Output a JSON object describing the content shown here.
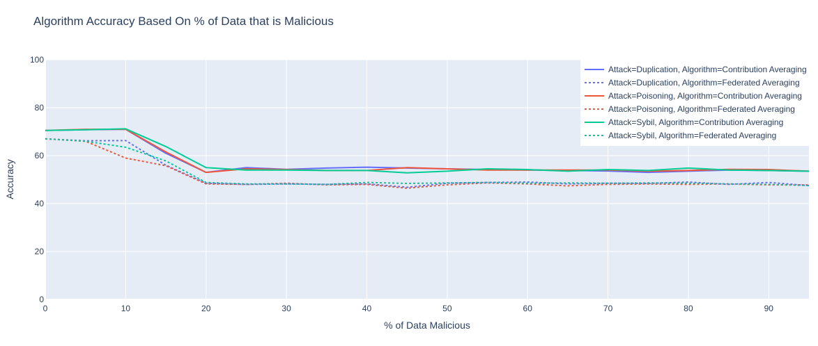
{
  "chart_data": {
    "type": "line",
    "title": "Algorithm Accuracy Based On % of Data that is Malicious",
    "xlabel": "% of Data Malicious",
    "ylabel": "Accuracy",
    "xlim": [
      0,
      95
    ],
    "ylim": [
      0,
      100
    ],
    "xticks": [
      0,
      10,
      20,
      30,
      40,
      50,
      60,
      70,
      80,
      90
    ],
    "yticks": [
      0,
      20,
      40,
      60,
      80,
      100
    ],
    "grid": true,
    "legend_position": "top-right",
    "x": [
      0,
      5,
      10,
      15,
      20,
      25,
      30,
      35,
      40,
      45,
      50,
      55,
      60,
      65,
      70,
      75,
      80,
      85,
      90,
      95
    ],
    "series": [
      {
        "name": "Attack=Duplication, Algorithm=Contribution Averaging",
        "color": "#636efa",
        "dash": "solid",
        "values": [
          70.5,
          70.8,
          71.0,
          61.0,
          53.0,
          55.0,
          54.3,
          54.8,
          55.2,
          54.8,
          54.5,
          54.2,
          54.0,
          53.8,
          53.6,
          53.0,
          53.5,
          54.0,
          53.8,
          53.5
        ]
      },
      {
        "name": "Attack=Duplication, Algorithm=Federated Averaging",
        "color": "#636efa",
        "dash": "dot",
        "values": [
          67.0,
          66.2,
          66.3,
          56.0,
          48.5,
          48.0,
          48.2,
          48.0,
          48.2,
          46.8,
          48.5,
          48.8,
          49.0,
          48.2,
          48.5,
          48.4,
          49.0,
          48.0,
          48.8,
          47.5
        ]
      },
      {
        "name": "Attack=Poisoning, Algorithm=Contribution Averaging",
        "color": "#ef553b",
        "dash": "solid",
        "values": [
          70.5,
          71.0,
          71.0,
          61.5,
          53.0,
          54.5,
          54.2,
          53.8,
          53.8,
          55.0,
          54.5,
          54.0,
          54.0,
          54.0,
          54.0,
          53.5,
          53.8,
          54.3,
          54.2,
          53.5
        ]
      },
      {
        "name": "Attack=Poisoning, Algorithm=Federated Averaging",
        "color": "#ef553b",
        "dash": "dot",
        "values": [
          67.0,
          66.0,
          59.0,
          55.8,
          48.2,
          48.0,
          48.5,
          47.8,
          48.0,
          46.4,
          47.8,
          48.6,
          48.2,
          47.4,
          48.0,
          48.2,
          48.0,
          48.2,
          47.8,
          47.8
        ]
      },
      {
        "name": "Attack=Sybil, Algorithm=Contribution Averaging",
        "color": "#00cc96",
        "dash": "solid",
        "values": [
          70.5,
          70.8,
          71.2,
          63.8,
          55.0,
          54.0,
          54.0,
          53.8,
          53.8,
          52.8,
          53.5,
          54.5,
          54.2,
          53.5,
          54.2,
          53.8,
          54.8,
          54.0,
          53.8,
          53.5
        ]
      },
      {
        "name": "Attack=Sybil, Algorithm=Federated Averaging",
        "color": "#00cc96",
        "dash": "dot",
        "values": [
          67.0,
          66.0,
          63.5,
          57.8,
          48.8,
          48.2,
          48.2,
          48.0,
          48.8,
          48.4,
          48.6,
          48.8,
          48.5,
          48.6,
          48.5,
          48.6,
          48.5,
          48.2,
          48.0,
          47.5
        ]
      }
    ]
  }
}
